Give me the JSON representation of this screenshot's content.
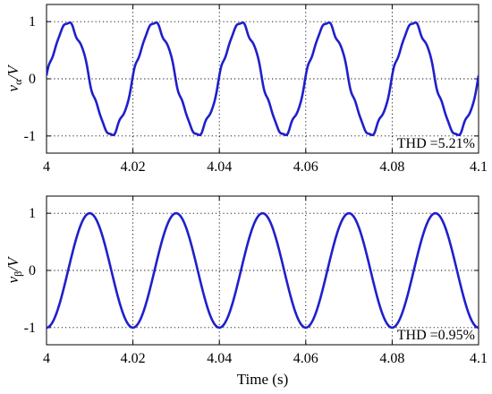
{
  "chart_data": [
    {
      "type": "line",
      "ylabel": "vα/V",
      "ylabel_parts": {
        "main": "v",
        "sub": "α",
        "unit": "/V"
      },
      "xlim": [
        4,
        4.1
      ],
      "ylim": [
        -1.3,
        1.3
      ],
      "xticks": [
        4,
        4.02,
        4.04,
        4.06,
        4.08,
        4.1
      ],
      "xtick_labels": [
        "4",
        "4.02",
        "4.04",
        "4.06",
        "4.08",
        "4.1"
      ],
      "yticks": [
        -1,
        0,
        1
      ],
      "ytick_labels": [
        "-1",
        "0",
        "1"
      ],
      "grid": true,
      "annotation": "THD =5.21%",
      "series": [
        {
          "color": "#1f1fcc",
          "frequency_hz": 50,
          "amplitude": 1.0,
          "phase_deg": 0,
          "distortion": "visible harmonics (THD 5.21%)"
        }
      ]
    },
    {
      "type": "line",
      "ylabel": "vβ/V",
      "ylabel_parts": {
        "main": "v",
        "sub": "β",
        "unit": "/V"
      },
      "xlabel": "Time (s)",
      "xlim": [
        4,
        4.1
      ],
      "ylim": [
        -1.3,
        1.3
      ],
      "xticks": [
        4,
        4.02,
        4.04,
        4.06,
        4.08,
        4.1
      ],
      "xtick_labels": [
        "4",
        "4.02",
        "4.04",
        "4.06",
        "4.08",
        "4.1"
      ],
      "yticks": [
        -1,
        0,
        1
      ],
      "ytick_labels": [
        "-1",
        "0",
        "1"
      ],
      "grid": true,
      "annotation": "THD =0.95%",
      "series": [
        {
          "color": "#1f1fcc",
          "frequency_hz": 50,
          "amplitude": 1.0,
          "phase_deg": -90,
          "distortion": "near-sinusoidal (THD 0.95%)"
        }
      ]
    }
  ]
}
